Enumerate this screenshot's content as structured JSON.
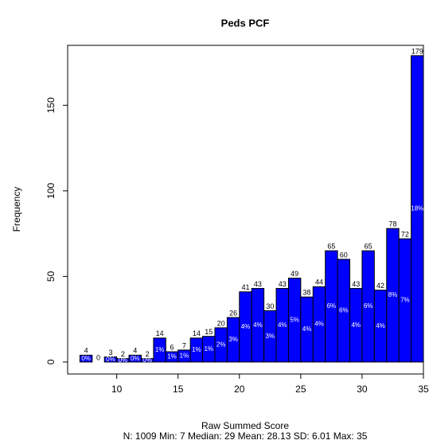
{
  "chart_data": {
    "type": "histogram",
    "title": "Peds PCF",
    "x_label": "Raw Summed Score",
    "subtitle": "N: 1009 Min: 7  Median: 29  Mean: 28.13  SD: 6.01  Max: 35",
    "y_label": "Frequency",
    "bins": [
      7,
      8,
      9,
      10,
      11,
      12,
      13,
      14,
      15,
      16,
      17,
      18,
      19,
      20,
      21,
      22,
      23,
      24,
      25,
      26,
      27,
      28,
      29,
      30,
      31,
      32,
      33,
      34,
      35
    ],
    "values": [
      4,
      0,
      3,
      2,
      4,
      2,
      14,
      6,
      7,
      14,
      15,
      20,
      26,
      41,
      43,
      30,
      43,
      49,
      38,
      44,
      65,
      60,
      43,
      65,
      42,
      78,
      72,
      179
    ],
    "percent_labels": [
      "0%",
      null,
      "0%",
      "0%",
      "0%",
      "0%",
      "1%",
      "1%",
      "1%",
      "1%",
      "1%",
      "2%",
      "3%",
      "4%",
      "4%",
      "3%",
      "4%",
      "5%",
      "4%",
      "4%",
      "6%",
      "6%",
      "4%",
      "6%",
      "4%",
      "8%",
      "7%",
      "18%"
    ],
    "color": "#0000ff",
    "xlim": [
      6,
      35
    ],
    "ylim": [
      -7,
      185
    ],
    "xticks": [
      10,
      15,
      20,
      25,
      30,
      35
    ],
    "yticks": [
      0,
      50,
      100,
      150
    ]
  }
}
